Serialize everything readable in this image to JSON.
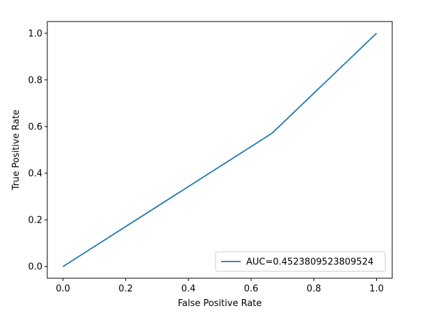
{
  "chart_data": {
    "type": "line",
    "title": "",
    "xlabel": "False Positive Rate",
    "ylabel": "True Positive Rate",
    "xlim": [
      -0.05,
      1.05
    ],
    "ylim": [
      -0.05,
      1.05
    ],
    "xticks": [
      0.0,
      0.2,
      0.4,
      0.6,
      0.8,
      1.0
    ],
    "yticks": [
      0.0,
      0.2,
      0.4,
      0.6,
      0.8,
      1.0
    ],
    "xtick_labels": [
      "0.0",
      "0.2",
      "0.4",
      "0.6",
      "0.8",
      "1.0"
    ],
    "ytick_labels": [
      "0.0",
      "0.2",
      "0.4",
      "0.6",
      "0.8",
      "1.0"
    ],
    "grid": false,
    "legend_position": "lower-right",
    "series": [
      {
        "name": "AUC=0.4523809523809524",
        "color": "#1f77b4",
        "x": [
          0.0,
          0.6667,
          1.0
        ],
        "y": [
          0.0,
          0.5714,
          1.0
        ]
      }
    ]
  }
}
